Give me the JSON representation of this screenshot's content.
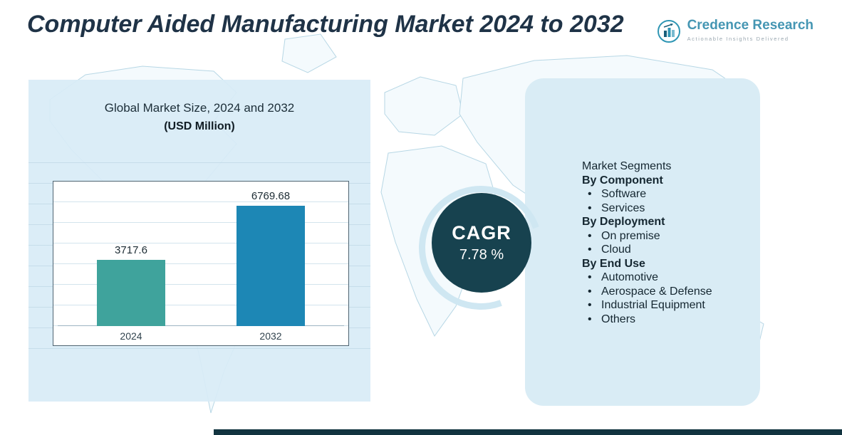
{
  "page": {
    "title": "Computer Aided Manufacturing Market 2024 to 2032"
  },
  "logo": {
    "name": "Credence Research",
    "tagline": "Actionable Insights Delivered"
  },
  "chart_data": {
    "type": "bar",
    "title": "Global Market Size, 2024 and 2032",
    "subtitle": "(USD Million)",
    "categories": [
      "2024",
      "2032"
    ],
    "values": [
      3717.6,
      6769.68
    ],
    "value_labels": [
      "3717.6",
      "6769.68"
    ],
    "bar_colors": [
      "#3fa39c",
      "#1d87b5"
    ],
    "ylim": [
      0,
      8000
    ],
    "grid": true,
    "legend": false
  },
  "cagr": {
    "label": "CAGR",
    "value": "7.78 %"
  },
  "segments": {
    "heading": "Market Segments",
    "groups": [
      {
        "label": "By Component",
        "items": [
          "Software",
          "Services"
        ]
      },
      {
        "label": "By Deployment",
        "items": [
          "On premise",
          "Cloud"
        ]
      },
      {
        "label": "By End Use",
        "items": [
          "Automotive",
          "Aerospace & Defense",
          "Industrial Equipment",
          "Others"
        ]
      }
    ]
  },
  "colors": {
    "title": "#1f3347",
    "panel": "#d9ecf5",
    "cagr_circle": "#17424f",
    "bar_2024": "#3fa39c",
    "bar_2032": "#1d87b5",
    "map_outline": "#b7d7e5",
    "accent_strip": "#123440"
  }
}
